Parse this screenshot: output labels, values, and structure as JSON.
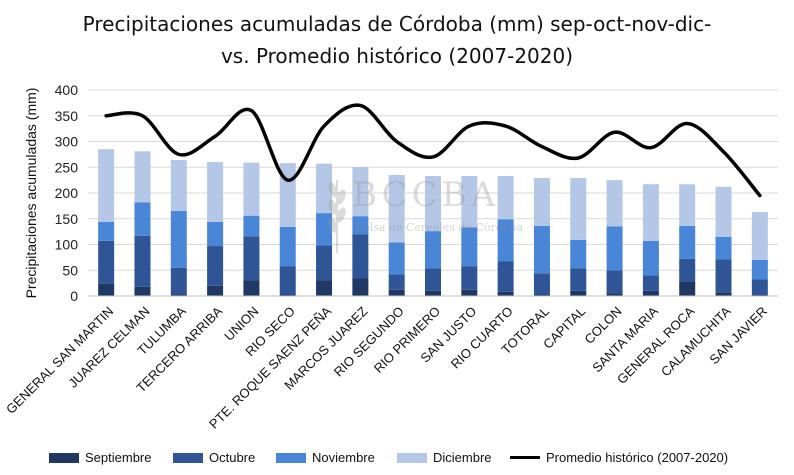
{
  "title_line1": "Precipitaciones acumuladas de Córdoba (mm) sep-oct-nov-dic-",
  "title_line2": "vs. Promedio histórico (2007-2020)",
  "watermark": {
    "big": "BCCBA",
    "small": "Bolsa de Cereales de Córdoba"
  },
  "chart_data": {
    "type": "bar",
    "stacked": true,
    "ylabel": "Precipitaciones acumuladas (mm)",
    "xlabel": "",
    "ylim": [
      0,
      400
    ],
    "yticks": [
      0,
      50,
      100,
      150,
      200,
      250,
      300,
      350,
      400
    ],
    "grid": true,
    "legend_position": "bottom",
    "categories": [
      "GENERAL SAN MARTIN",
      "JUAREZ CELMAN",
      "TULUMBA",
      "TERCERO ARRIBA",
      "UNION",
      "RIO SECO",
      "PTE. ROQUE SAENZ PEÑA",
      "MARCOS JUAREZ",
      "RIO SEGUNDO",
      "RIO PRIMERO",
      "SAN JUSTO",
      "RIO CUARTO",
      "TOTORAL",
      "CAPITAL",
      "COLON",
      "SANTA MARIA",
      "GENERAL ROCA",
      "CALAMUCHITA",
      "SAN JAVIER"
    ],
    "series": [
      {
        "name": "Septiembre",
        "color": "#1f3864",
        "values": [
          24,
          18,
          3,
          20,
          30,
          3,
          30,
          34,
          12,
          10,
          12,
          8,
          3,
          10,
          5,
          10,
          28,
          7,
          2
        ]
      },
      {
        "name": "Octubre",
        "color": "#2f5597",
        "values": [
          83,
          99,
          52,
          77,
          86,
          55,
          68,
          86,
          30,
          44,
          46,
          59,
          41,
          44,
          45,
          30,
          44,
          64,
          30
        ]
      },
      {
        "name": "Noviembre",
        "color": "#4a86d8",
        "values": [
          37,
          65,
          110,
          47,
          40,
          76,
          63,
          35,
          62,
          72,
          75,
          82,
          92,
          55,
          85,
          67,
          64,
          44,
          38
        ]
      },
      {
        "name": "Diciembre",
        "color": "#b4c7e7",
        "values": [
          141,
          99,
          99,
          116,
          103,
          124,
          96,
          95,
          131,
          107,
          100,
          84,
          93,
          120,
          90,
          110,
          81,
          97,
          93
        ]
      }
    ],
    "line_series": {
      "name": "Promedio histórico (2007-2020)",
      "color": "#000000",
      "values": [
        350,
        350,
        275,
        310,
        360,
        225,
        330,
        370,
        300,
        270,
        330,
        330,
        290,
        268,
        318,
        288,
        335,
        280,
        195
      ]
    }
  }
}
